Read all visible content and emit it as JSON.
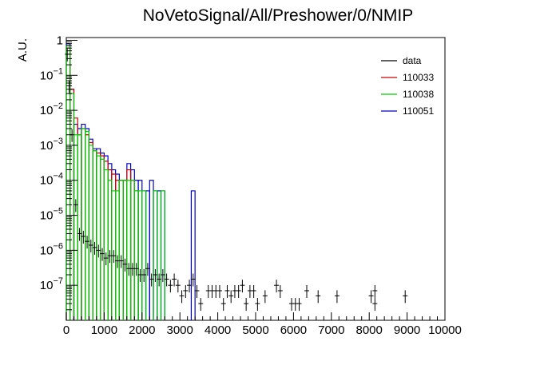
{
  "chart_data": {
    "type": "histogram",
    "title": "NoVetoSignal/All/Preshower/0/NMIP",
    "xlabel": "",
    "ylabel": "A.U.",
    "xlim": [
      0,
      10000
    ],
    "ylim": [
      1e-08,
      1.2
    ],
    "yscale": "log",
    "x_ticks": [
      "0",
      "1000",
      "2000",
      "3000",
      "4000",
      "5000",
      "6000",
      "7000",
      "8000",
      "9000",
      "10000"
    ],
    "y_ticks": [
      {
        "value": 1e-07,
        "base": "10",
        "exp": "−7"
      },
      {
        "value": 1e-06,
        "base": "10",
        "exp": "−6"
      },
      {
        "value": 1e-05,
        "base": "10",
        "exp": "−5"
      },
      {
        "value": 0.0001,
        "base": "10",
        "exp": "−4"
      },
      {
        "value": 0.001,
        "base": "10",
        "exp": "−3"
      },
      {
        "value": 0.01,
        "base": "10",
        "exp": "−2"
      },
      {
        "value": 0.1,
        "base": "10",
        "exp": "−1"
      },
      {
        "value": 1,
        "base": "1",
        "exp": ""
      }
    ],
    "legend": {
      "position": "top-right",
      "entries": [
        {
          "label": "data",
          "color": "#000000"
        },
        {
          "label": "110033",
          "color": "#cc0000"
        },
        {
          "label": "110038",
          "color": "#00cc00"
        },
        {
          "label": "110051",
          "color": "#0000cc"
        }
      ]
    },
    "series": [
      {
        "name": "110051",
        "color": "#0000cc",
        "bin_width": 100,
        "bins": [
          [
            0,
            0.8
          ],
          [
            100,
            0.04
          ],
          [
            200,
            0.004
          ],
          [
            300,
            0.003
          ],
          [
            400,
            0.004
          ],
          [
            500,
            0.003
          ],
          [
            600,
            0.0015
          ],
          [
            700,
            0.0008
          ],
          [
            800,
            0.0008
          ],
          [
            900,
            0.0006
          ],
          [
            1000,
            0.0005
          ],
          [
            1100,
            0.0003
          ],
          [
            1200,
            0.0002
          ],
          [
            1300,
            0.00015
          ],
          [
            1400,
            0.0001
          ],
          [
            1500,
            0.0001
          ],
          [
            1600,
            0.0003
          ],
          [
            1700,
            0.0002
          ],
          [
            1800,
            0.0001
          ],
          [
            1900,
            0.0001
          ],
          [
            2000,
            5e-05
          ],
          [
            2100,
            5e-05
          ],
          [
            2200,
            0.0001
          ],
          [
            2300,
            5e-05
          ],
          [
            2400,
            5e-05
          ],
          [
            2500,
            5e-05
          ],
          [
            3300,
            5e-05
          ]
        ]
      },
      {
        "name": "110033",
        "color": "#cc0000",
        "bin_width": 100,
        "bins": [
          [
            0,
            0.6
          ],
          [
            100,
            0.04
          ],
          [
            200,
            0.006
          ],
          [
            300,
            0.002
          ],
          [
            400,
            0.003
          ],
          [
            500,
            0.002
          ],
          [
            600,
            0.0012
          ],
          [
            700,
            0.0007
          ],
          [
            800,
            0.0006
          ],
          [
            900,
            0.0005
          ],
          [
            1000,
            0.00035
          ],
          [
            1100,
            0.0002
          ],
          [
            1200,
            0.00015
          ],
          [
            1300,
            0.0001
          ],
          [
            1400,
            0.0001
          ],
          [
            1500,
            0.0001
          ],
          [
            1600,
            0.0002
          ],
          [
            1700,
            0.0001
          ],
          [
            1800,
            5e-05
          ]
        ]
      },
      {
        "name": "110038",
        "color": "#00cc00",
        "bin_width": 100,
        "bins": [
          [
            0,
            0.7
          ],
          [
            100,
            0.03
          ],
          [
            200,
            0.002
          ],
          [
            300,
            0.002
          ],
          [
            400,
            0.003
          ],
          [
            500,
            0.0025
          ],
          [
            600,
            0.001
          ],
          [
            700,
            0.0007
          ],
          [
            800,
            0.0005
          ],
          [
            900,
            0.0004
          ],
          [
            1000,
            0.0002
          ],
          [
            1100,
            0.0001
          ],
          [
            1200,
            5e-05
          ],
          [
            1300,
            5e-05
          ],
          [
            1400,
            0.0001
          ],
          [
            1500,
            0.0001
          ],
          [
            1600,
            0.0001
          ],
          [
            1700,
            0.0001
          ],
          [
            1800,
            5e-05
          ],
          [
            1900,
            5e-05
          ],
          [
            2000,
            5e-05
          ],
          [
            2300,
            5e-05
          ],
          [
            2500,
            5e-05
          ]
        ]
      },
      {
        "name": "data",
        "color": "#000000",
        "points": [
          [
            25,
            0.4
          ],
          [
            75,
            0.05
          ],
          [
            150,
            0.002
          ],
          [
            250,
            2e-05
          ],
          [
            350,
            3e-06
          ],
          [
            450,
            2.5e-06
          ],
          [
            550,
            1.8e-06
          ],
          [
            650,
            1.4e-06
          ],
          [
            750,
            1.2e-06
          ],
          [
            850,
            1e-06
          ],
          [
            950,
            8e-07
          ],
          [
            1050,
            6e-07
          ],
          [
            1150,
            7e-07
          ],
          [
            1250,
            7e-07
          ],
          [
            1350,
            5e-07
          ],
          [
            1450,
            5e-07
          ],
          [
            1550,
            4e-07
          ],
          [
            1650,
            3e-07
          ],
          [
            1750,
            3e-07
          ],
          [
            1850,
            3e-07
          ],
          [
            1950,
            2e-07
          ],
          [
            2050,
            2e-07
          ],
          [
            2150,
            3e-07
          ],
          [
            2250,
            1.5e-07
          ],
          [
            2350,
            2e-07
          ],
          [
            2450,
            1.5e-07
          ],
          [
            2550,
            2e-07
          ],
          [
            2650,
            1.5e-07
          ],
          [
            2750,
            1e-07
          ],
          [
            2850,
            1.5e-07
          ],
          [
            2950,
            1e-07
          ],
          [
            3050,
            5e-08
          ],
          [
            3150,
            7e-08
          ],
          [
            3250,
            1e-07
          ],
          [
            3350,
            1.5e-07
          ],
          [
            3450,
            7e-08
          ],
          [
            3550,
            3e-08
          ],
          [
            3750,
            7e-08
          ],
          [
            3850,
            7e-08
          ],
          [
            3950,
            7e-08
          ],
          [
            4050,
            7e-08
          ],
          [
            4150,
            3e-08
          ],
          [
            4250,
            7e-08
          ],
          [
            4350,
            5e-08
          ],
          [
            4450,
            7e-08
          ],
          [
            4550,
            7e-08
          ],
          [
            4650,
            1e-07
          ],
          [
            4750,
            3e-08
          ],
          [
            4850,
            7e-08
          ],
          [
            4950,
            7e-08
          ],
          [
            5050,
            3e-08
          ],
          [
            5250,
            5e-08
          ],
          [
            5550,
            1e-07
          ],
          [
            5650,
            7e-08
          ],
          [
            5950,
            3e-08
          ],
          [
            6050,
            3e-08
          ],
          [
            6150,
            3e-08
          ],
          [
            6350,
            7e-08
          ],
          [
            6650,
            5e-08
          ],
          [
            7150,
            5e-08
          ],
          [
            8050,
            5e-08
          ],
          [
            8150,
            3e-08
          ],
          [
            8150,
            7e-08
          ],
          [
            8950,
            5e-08
          ]
        ]
      }
    ]
  }
}
